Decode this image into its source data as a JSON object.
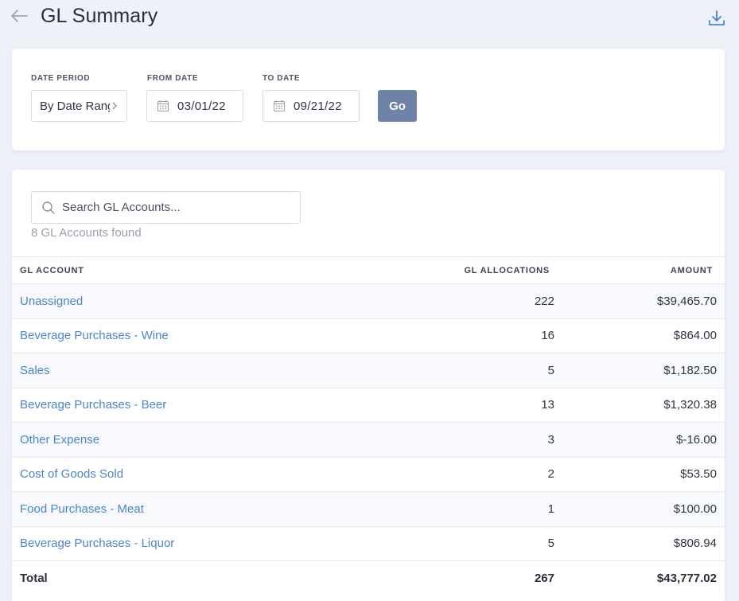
{
  "header": {
    "title": "GL Summary",
    "back_icon": "arrow-left-icon",
    "download_icon": "download-icon"
  },
  "filters": {
    "date_period_label": "DATE PERIOD",
    "date_period_value": "By Date Range",
    "from_date_label": "FROM DATE",
    "from_date_value": "03/01/22",
    "to_date_label": "TO DATE",
    "to_date_value": "09/21/22",
    "go_label": "Go"
  },
  "search": {
    "placeholder": "Search GL Accounts...",
    "found_text": "8 GL Accounts found"
  },
  "table": {
    "columns": [
      "GL ACCOUNT",
      "GL ALLOCATIONS",
      "AMOUNT"
    ],
    "rows": [
      {
        "account": "Unassigned",
        "allocations": "222",
        "amount": "$39,465.70"
      },
      {
        "account": "Beverage Purchases - Wine",
        "allocations": "16",
        "amount": "$864.00"
      },
      {
        "account": "Sales",
        "allocations": "5",
        "amount": "$1,182.50"
      },
      {
        "account": "Beverage Purchases - Beer",
        "allocations": "13",
        "amount": "$1,320.38"
      },
      {
        "account": "Other Expense",
        "allocations": "3",
        "amount": "$-16.00"
      },
      {
        "account": "Cost of Goods Sold",
        "allocations": "2",
        "amount": "$53.50"
      },
      {
        "account": "Food Purchases - Meat",
        "allocations": "1",
        "amount": "$100.00"
      },
      {
        "account": "Beverage Purchases - Liquor",
        "allocations": "5",
        "amount": "$806.94"
      }
    ],
    "total": {
      "label": "Total",
      "allocations": "267",
      "amount": "$43,777.02"
    }
  },
  "colors": {
    "background": "#eef1f8",
    "link": "#4a86c8",
    "button": "#6e83a6"
  }
}
